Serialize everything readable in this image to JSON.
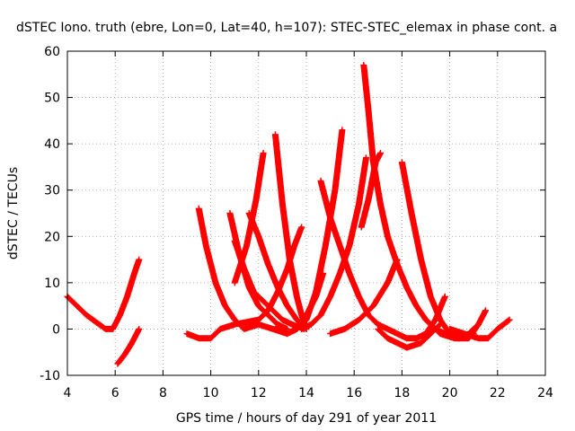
{
  "chart_data": {
    "type": "scatter",
    "title": "dSTEC Iono. truth (ebre, Lon=0, Lat=40, h=107): STEC-STEC_elemax in phase cont. a",
    "xlabel": "GPS time / hours of day 291 of year 2011",
    "ylabel": "dSTEC  / TECUs",
    "xlim": [
      4,
      24
    ],
    "ylim": [
      -10,
      60
    ],
    "xticks": [
      4,
      6,
      8,
      10,
      12,
      14,
      16,
      18,
      20,
      22,
      24
    ],
    "yticks": [
      -10,
      0,
      10,
      20,
      30,
      40,
      50,
      60
    ],
    "xtick_labels": [
      "4",
      "6",
      "8",
      "10",
      "12",
      "14",
      "16",
      "18",
      "20",
      "22",
      "24"
    ],
    "ytick_labels": [
      "-10",
      "0",
      "10",
      "20",
      "30",
      "40",
      "50",
      "60"
    ],
    "grid": true,
    "marker": "+",
    "color": "#ff0000",
    "series": [
      {
        "x": [
          4.0,
          4.4,
          4.8,
          5.2,
          5.6,
          5.9
        ],
        "y": [
          7,
          5,
          3,
          1.5,
          0,
          0
        ]
      },
      {
        "x": [
          5.9,
          6.2,
          6.5,
          6.8,
          7.0
        ],
        "y": [
          0,
          3,
          7,
          12,
          15
        ]
      },
      {
        "x": [
          6.1,
          6.4,
          6.7,
          7.0
        ],
        "y": [
          -7.5,
          -5.5,
          -3,
          0
        ]
      },
      {
        "x": [
          9.0,
          9.5,
          10.0,
          10.4
        ],
        "y": [
          -1,
          -2,
          -2,
          0
        ]
      },
      {
        "x": [
          10.4,
          11.0,
          11.5,
          12.0
        ],
        "y": [
          0,
          1,
          1.5,
          2
        ]
      },
      {
        "x": [
          12.0,
          12.4,
          12.8,
          13.2,
          13.5,
          13.8
        ],
        "y": [
          2,
          4,
          8,
          13,
          18,
          22
        ]
      },
      {
        "x": [
          9.5,
          9.8,
          10.2,
          10.6,
          11.0,
          11.4,
          12.0,
          12.6,
          13.2,
          13.6
        ],
        "y": [
          26,
          18,
          10,
          5,
          2,
          0,
          1,
          0,
          -1,
          0
        ]
      },
      {
        "x": [
          10.8,
          11.2,
          11.6,
          12.0,
          12.4,
          12.8,
          13.2
        ],
        "y": [
          25,
          16,
          9,
          5,
          3,
          1,
          0
        ]
      },
      {
        "x": [
          11.0,
          11.4,
          11.8,
          12.2,
          12.6,
          13.0,
          13.4,
          13.9
        ],
        "y": [
          19,
          13,
          8,
          6,
          4,
          2,
          1,
          0
        ]
      },
      {
        "x": [
          11.6,
          12.0,
          12.4,
          12.8,
          13.2,
          13.6,
          14.0
        ],
        "y": [
          25,
          20,
          14,
          9,
          5,
          2,
          0
        ]
      },
      {
        "x": [
          11.0,
          11.5,
          11.9,
          12.2
        ],
        "y": [
          10,
          18,
          28,
          38
        ]
      },
      {
        "x": [
          12.7,
          13.0,
          13.3,
          13.6,
          13.8,
          14.0
        ],
        "y": [
          42,
          27,
          15,
          7,
          3,
          0
        ]
      },
      {
        "x": [
          12.7,
          13.2,
          13.6,
          14.0,
          14.4,
          14.7
        ],
        "y": [
          0,
          -1,
          0,
          3,
          7,
          12
        ]
      },
      {
        "x": [
          13.6,
          14.0,
          14.4,
          14.8,
          15.2,
          15.5
        ],
        "y": [
          0,
          2,
          8,
          18,
          30,
          43
        ]
      },
      {
        "x": [
          13.8,
          14.2,
          14.6,
          15.0,
          15.4,
          15.8,
          16.2,
          16.5
        ],
        "y": [
          0,
          1,
          3,
          7,
          12,
          18,
          27,
          37
        ]
      },
      {
        "x": [
          14.6,
          15.0,
          15.4,
          15.8,
          16.2,
          16.6,
          17.0,
          17.4,
          17.8,
          18.2,
          18.6,
          19.0,
          19.4,
          19.8
        ],
        "y": [
          32,
          24,
          18,
          12,
          7,
          3,
          1,
          0,
          -1,
          -2,
          -2,
          -1,
          2,
          7
        ]
      },
      {
        "x": [
          15.0,
          15.6,
          16.2,
          16.8,
          17.4,
          17.8
        ],
        "y": [
          -1,
          0,
          2,
          5,
          10,
          15
        ]
      },
      {
        "x": [
          16.4,
          16.6,
          16.8,
          17.1,
          17.4,
          17.8,
          18.2,
          18.6,
          19.0,
          19.4,
          19.8,
          20.4,
          21.0
        ],
        "y": [
          57,
          47,
          36,
          27,
          20,
          14,
          9,
          5,
          2,
          0,
          -1,
          -2,
          -1
        ]
      },
      {
        "x": [
          16.3,
          16.6,
          16.9,
          17.1
        ],
        "y": [
          22,
          28,
          36,
          38
        ]
      },
      {
        "x": [
          17.0,
          17.4,
          17.8,
          18.2,
          18.8,
          19.2,
          19.6
        ],
        "y": [
          0,
          -2,
          -3,
          -4,
          -3,
          -1,
          1
        ]
      },
      {
        "x": [
          18.0,
          18.4,
          18.8,
          19.2,
          19.6,
          20.0,
          20.4,
          20.8,
          21.2
        ],
        "y": [
          36,
          25,
          15,
          7,
          2,
          -1,
          -2,
          -1,
          1
        ]
      },
      {
        "x": [
          19.0,
          19.6,
          20.2,
          20.8,
          21.2,
          21.5
        ],
        "y": [
          2,
          -1,
          -2,
          -2,
          1,
          4
        ]
      },
      {
        "x": [
          20.0,
          20.6,
          21.2,
          21.6,
          22.0,
          22.5
        ],
        "y": [
          0,
          -1,
          -2,
          -2,
          0,
          2
        ]
      }
    ]
  }
}
